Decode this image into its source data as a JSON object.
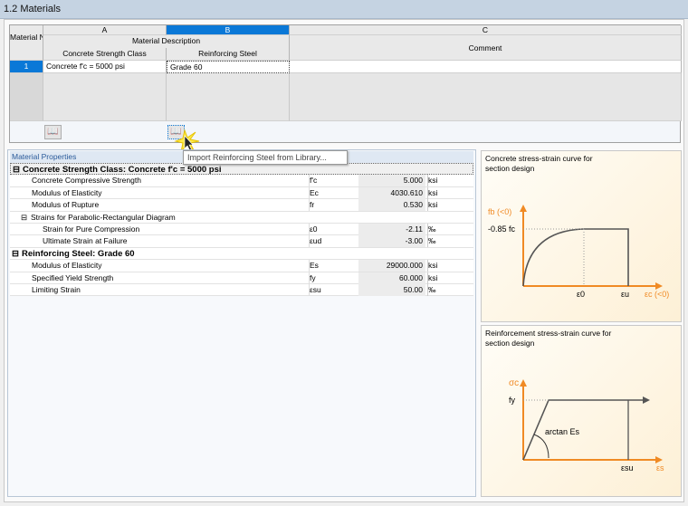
{
  "title": "1.2 Materials",
  "columns": {
    "letters": [
      "A",
      "B",
      "C"
    ],
    "material_no": "Material No.",
    "material_description": "Material Description",
    "concrete": "Concrete Strength Class",
    "steel": "Reinforcing Steel",
    "comment": "Comment"
  },
  "rows": [
    {
      "no": "1",
      "concrete": "Concrete f'c = 5000 psi",
      "steel": "Grade 60",
      "comment": ""
    }
  ],
  "tooltip": "Import Reinforcing Steel from Library...",
  "properties": {
    "header": "Material Properties",
    "concrete_group": "Concrete Strength Class: Concrete f'c = 5000 psi",
    "concrete_items": [
      {
        "name": "Concrete Compressive Strength",
        "symbol": "f'c",
        "value": "5.000",
        "unit": "ksi"
      },
      {
        "name": "Modulus of Elasticity",
        "symbol": "Ec",
        "value": "4030.610",
        "unit": "ksi"
      },
      {
        "name": "Modulus of Rupture",
        "symbol": "fr",
        "value": "0.530",
        "unit": "ksi"
      }
    ],
    "strain_group": "Strains for Parabolic-Rectangular Diagram",
    "strain_items": [
      {
        "name": "Strain for Pure Compression",
        "symbol": "ε0",
        "value": "-2.11",
        "unit": "‰"
      },
      {
        "name": "Ultimate Strain at Failure",
        "symbol": "εud",
        "value": "-3.00",
        "unit": "‰"
      }
    ],
    "steel_group": "Reinforcing Steel: Grade 60",
    "steel_items": [
      {
        "name": "Modulus of Elasticity",
        "symbol": "Es",
        "value": "29000.000",
        "unit": "ksi"
      },
      {
        "name": "Specified Yield Strength",
        "symbol": "fy",
        "value": "60.000",
        "unit": "ksi"
      },
      {
        "name": "Limiting Strain",
        "symbol": "εsu",
        "value": "50.00",
        "unit": "‰"
      }
    ]
  },
  "diagram1": {
    "title": "Concrete stress-strain curve for section design",
    "y_label": "fb (<0)",
    "level": "-0.85 fc",
    "x0": "ε0",
    "xu": "εu",
    "x_label": "εc (<0)"
  },
  "diagram2": {
    "title": "Reinforcement stress-strain curve for section design",
    "y_label": "σc",
    "level": "fy",
    "angle": "arctan Es",
    "xsu": "εsu",
    "x_label": "εs"
  },
  "colors": {
    "accent": "#f08a24",
    "selected": "#0a78d7"
  }
}
